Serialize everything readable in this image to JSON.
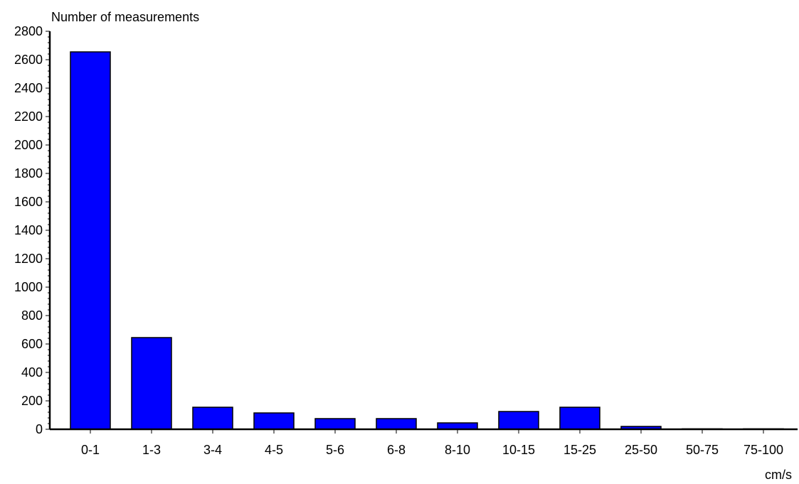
{
  "chart_data": {
    "type": "bar",
    "title": "",
    "ylabel": "Number of measurements",
    "xlabel": "cm/s",
    "categories": [
      "0-1",
      "1-3",
      "3-4",
      "4-5",
      "5-6",
      "6-8",
      "8-10",
      "10-15",
      "15-25",
      "25-50",
      "50-75",
      "75-100"
    ],
    "values": [
      2655,
      645,
      155,
      115,
      75,
      75,
      45,
      125,
      155,
      20,
      3,
      3
    ],
    "ylim": [
      0,
      2800
    ],
    "yticks": [
      0,
      200,
      400,
      600,
      800,
      1000,
      1200,
      1400,
      1600,
      1800,
      2000,
      2200,
      2400,
      2600,
      2800
    ],
    "bar_color": "#0000ff",
    "grid": false,
    "legend": "none"
  }
}
